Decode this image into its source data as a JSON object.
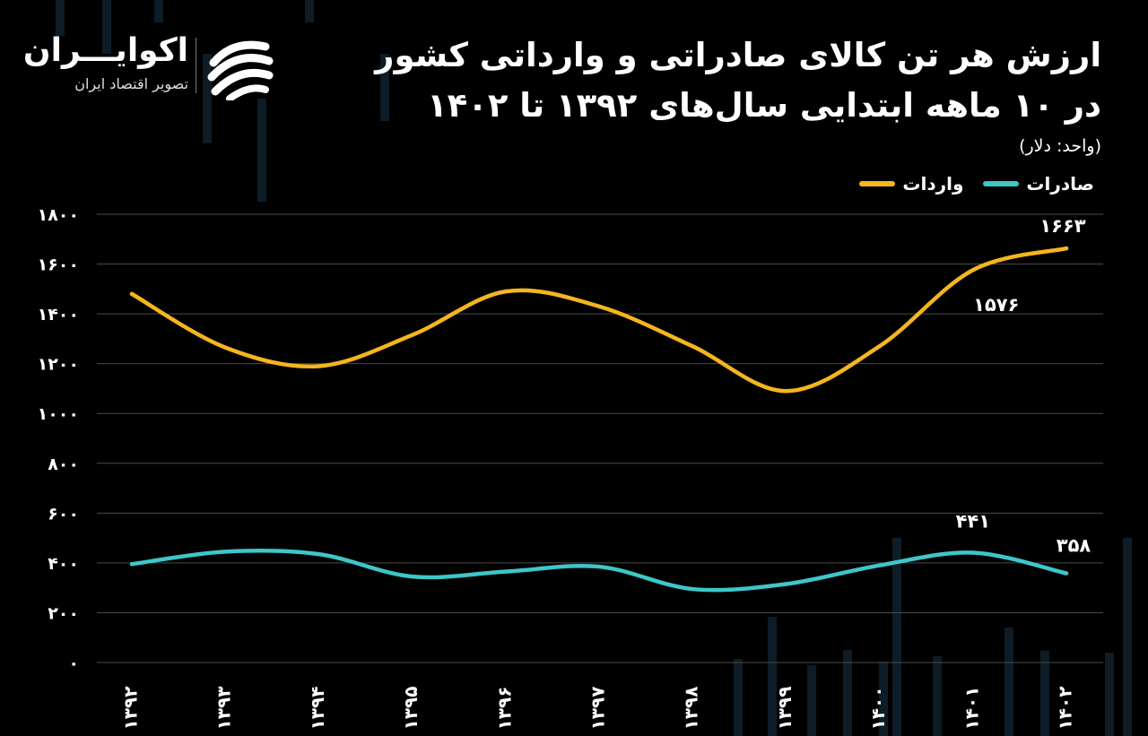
{
  "header": {
    "title_line1": "ارزش هر تن کالای صادراتی و وارداتی کشور",
    "title_line2": "در ۱۰ ماهه ابتدایی سال‌های ۱۳۹۲ تا ۱۴۰۲",
    "unit": "(واحد: دلار)"
  },
  "logo": {
    "name": "اکوایـــران",
    "tagline": "تصویر اقتصاد ایران",
    "icon": "ecoiran-swirl-icon"
  },
  "legend": [
    {
      "label": "صادرات",
      "color": "#3ec6c8"
    },
    {
      "label": "واردات",
      "color": "#f5b51f"
    }
  ],
  "chart_data": {
    "type": "line",
    "categories": [
      "۱۳۹۲",
      "۱۳۹۳",
      "۱۳۹۴",
      "۱۳۹۵",
      "۱۳۹۶",
      "۱۳۹۷",
      "۱۳۹۸",
      "۱۳۹۹",
      "۱۴۰۰",
      "۱۴۰۱",
      "۱۴۰۲"
    ],
    "series": [
      {
        "name": "واردات",
        "color": "#f5b51f",
        "values": [
          1480,
          1265,
          1190,
          1315,
          1490,
          1430,
          1270,
          1090,
          1270,
          1576,
          1663
        ]
      },
      {
        "name": "صادرات",
        "color": "#3ec6c8",
        "values": [
          395,
          445,
          435,
          345,
          365,
          385,
          295,
          315,
          390,
          441,
          358
        ]
      }
    ],
    "data_labels": [
      {
        "series": 0,
        "index": 9,
        "text": "۱۵۷۶"
      },
      {
        "series": 0,
        "index": 10,
        "text": "۱۶۶۳"
      },
      {
        "series": 1,
        "index": 9,
        "text": "۴۴۱"
      },
      {
        "series": 1,
        "index": 10,
        "text": "۳۵۸"
      }
    ],
    "ylim": [
      0,
      1800
    ],
    "yticks": [
      0,
      200,
      400,
      600,
      800,
      1000,
      1200,
      1400,
      1600,
      1800
    ],
    "ytick_labels": [
      "۰",
      "۲۰۰",
      "۴۰۰",
      "۶۰۰",
      "۸۰۰",
      "۱۰۰۰",
      "۱۲۰۰",
      "۱۴۰۰",
      "۱۶۰۰",
      "۱۸۰۰"
    ],
    "grid": true,
    "legend_position": "top-right",
    "xlabel": "",
    "ylabel": ""
  }
}
